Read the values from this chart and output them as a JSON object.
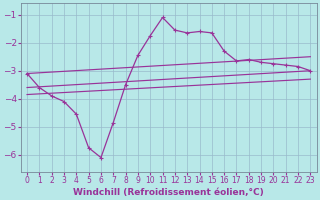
{
  "background_color": "#b8e8e8",
  "grid_color": "#99bbcc",
  "line_color": "#993399",
  "marker": "+",
  "xlabel": "Windchill (Refroidissement éolien,°C)",
  "xlabel_fontsize": 6.5,
  "xtick_fontsize": 5.5,
  "ytick_fontsize": 6.5,
  "ylim": [
    -6.6,
    -0.6
  ],
  "xlim": [
    -0.5,
    23.5
  ],
  "yticks": [
    -6,
    -5,
    -4,
    -3,
    -2,
    -1
  ],
  "xticks": [
    0,
    1,
    2,
    3,
    4,
    5,
    6,
    7,
    8,
    9,
    10,
    11,
    12,
    13,
    14,
    15,
    16,
    17,
    18,
    19,
    20,
    21,
    22,
    23
  ],
  "series1_x": [
    0,
    1,
    2,
    3,
    4,
    5,
    6,
    7,
    8,
    9,
    10,
    11,
    12,
    13,
    14,
    15,
    16,
    17,
    18,
    19,
    20,
    21,
    22,
    23
  ],
  "series1_y": [
    -3.1,
    -3.6,
    -3.9,
    -4.1,
    -4.55,
    -5.75,
    -6.1,
    -4.85,
    -3.5,
    -2.45,
    -1.75,
    -1.1,
    -1.55,
    -1.65,
    -1.6,
    -1.65,
    -2.3,
    -2.65,
    -2.6,
    -2.7,
    -2.75,
    -2.8,
    -2.85,
    -3.0
  ],
  "series2_x": [
    0,
    23
  ],
  "series2_y": [
    -3.1,
    -2.5
  ],
  "series3_x": [
    0,
    23
  ],
  "series3_y": [
    -3.6,
    -3.0
  ],
  "series4_x": [
    0,
    23
  ],
  "series4_y": [
    -3.85,
    -3.3
  ],
  "lw_series1": 0.9,
  "lw_lines": 0.85
}
